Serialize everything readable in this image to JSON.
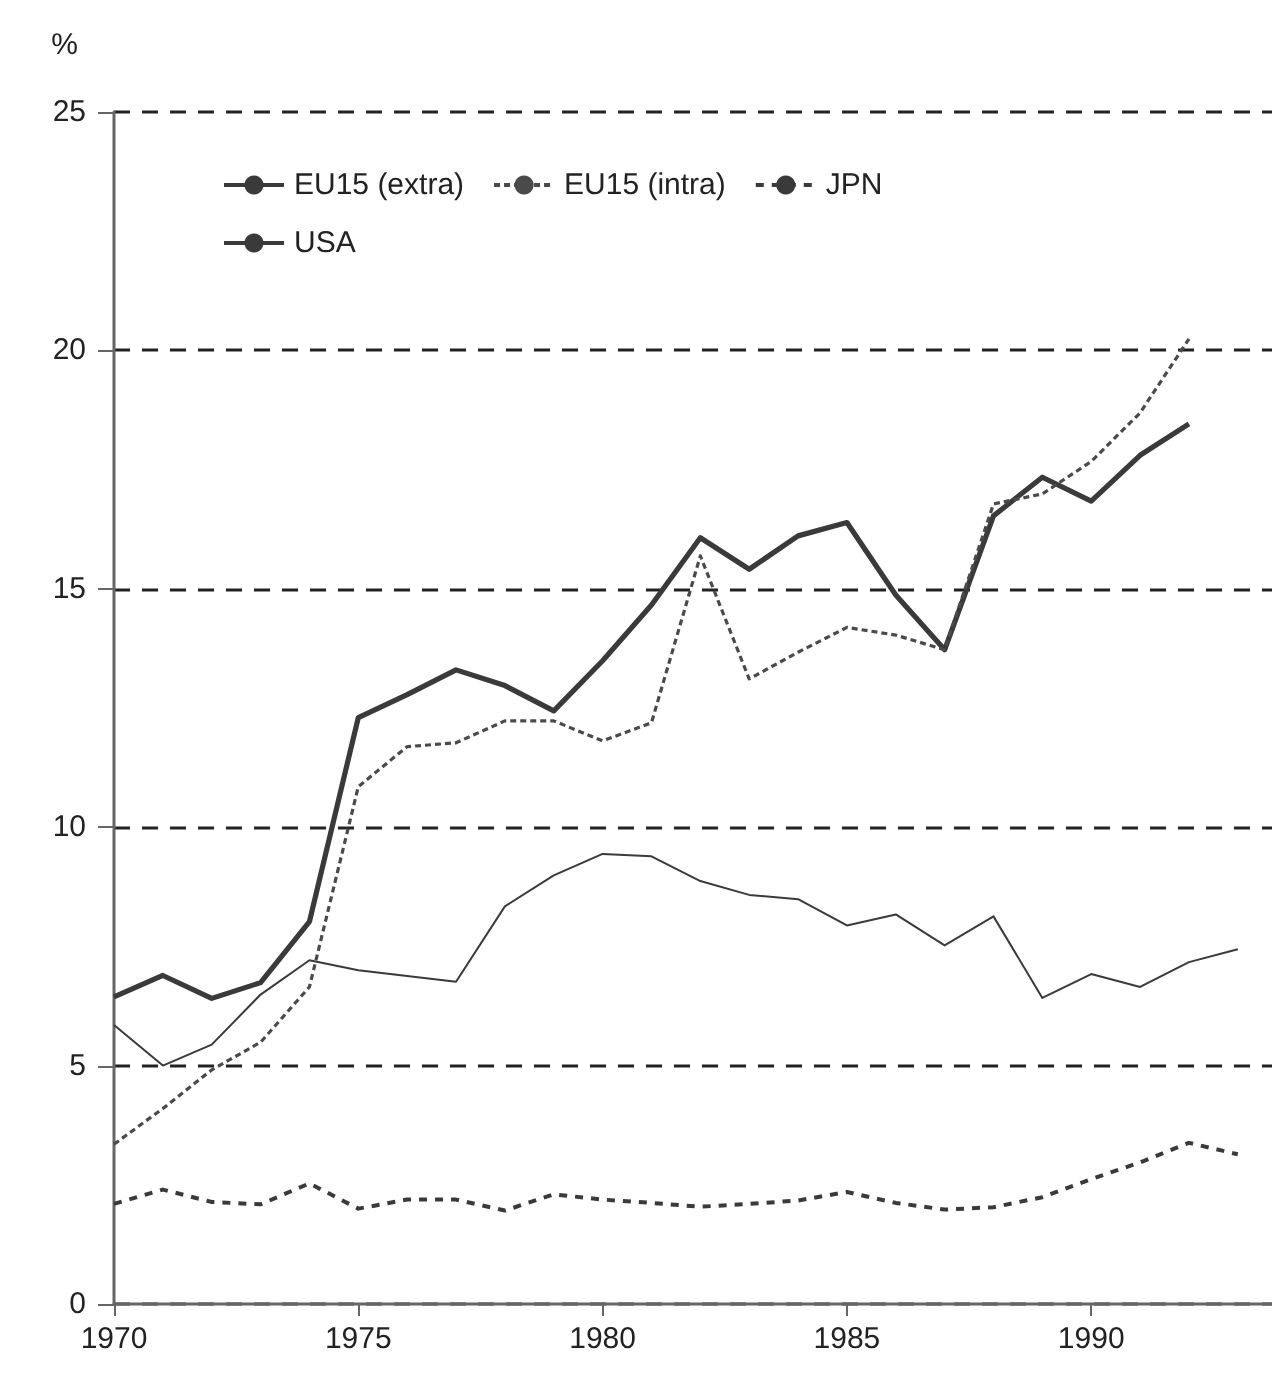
{
  "chart_data": {
    "type": "line",
    "ylabel": "%",
    "x": [
      1970,
      1971,
      1972,
      1973,
      1974,
      1975,
      1976,
      1977,
      1978,
      1979,
      1980,
      1981,
      1982,
      1983,
      1984,
      1985,
      1986,
      1987,
      1988,
      1989,
      1990,
      1991,
      1992,
      1993
    ],
    "xlim": [
      1970,
      1993.7
    ],
    "xticks": [
      1970,
      1975,
      1980,
      1985,
      1990
    ],
    "ylim": [
      0,
      25
    ],
    "yticks": [
      0,
      5,
      10,
      15,
      20,
      25
    ],
    "grid": "y",
    "legend": "top left",
    "marker": "none",
    "series": [
      {
        "name": "EU15 (extra)",
        "color": "#3a3a3a",
        "line_style": "solid",
        "values": [
          6.44,
          6.89,
          6.41,
          6.74,
          8.02,
          12.3,
          12.78,
          13.3,
          12.97,
          12.44,
          13.49,
          14.66,
          16.07,
          15.41,
          16.11,
          16.39,
          14.87,
          13.72,
          16.53,
          17.34,
          16.84,
          17.8,
          18.46,
          null
        ]
      },
      {
        "name": "EU15 (intra)",
        "color": "#4a4a4a",
        "line_style": "dotted",
        "values": [
          3.35,
          4.1,
          4.91,
          5.49,
          6.65,
          10.85,
          11.69,
          11.77,
          12.23,
          12.23,
          11.81,
          12.19,
          15.69,
          13.11,
          13.67,
          14.19,
          14.03,
          13.72,
          16.78,
          16.99,
          17.67,
          18.69,
          20.24,
          null
        ]
      },
      {
        "name": "JPN",
        "color": "#3a3a3a",
        "line_style": "dashed",
        "values": [
          2.1,
          2.4,
          2.14,
          2.09,
          2.53,
          2.0,
          2.19,
          2.19,
          1.96,
          2.3,
          2.19,
          2.12,
          2.04,
          2.1,
          2.17,
          2.35,
          2.12,
          1.98,
          2.03,
          2.24,
          2.62,
          2.97,
          3.38,
          3.14
        ]
      },
      {
        "name": "USA",
        "color": "#3a3a3a",
        "line_style": "solid",
        "values": [
          5.85,
          5.0,
          5.44,
          6.49,
          7.21,
          7.0,
          6.88,
          6.76,
          8.34,
          8.99,
          9.44,
          9.39,
          8.87,
          8.58,
          8.49,
          7.94,
          8.17,
          7.52,
          8.13,
          6.42,
          6.92,
          6.65,
          7.17,
          7.44
        ]
      }
    ]
  }
}
